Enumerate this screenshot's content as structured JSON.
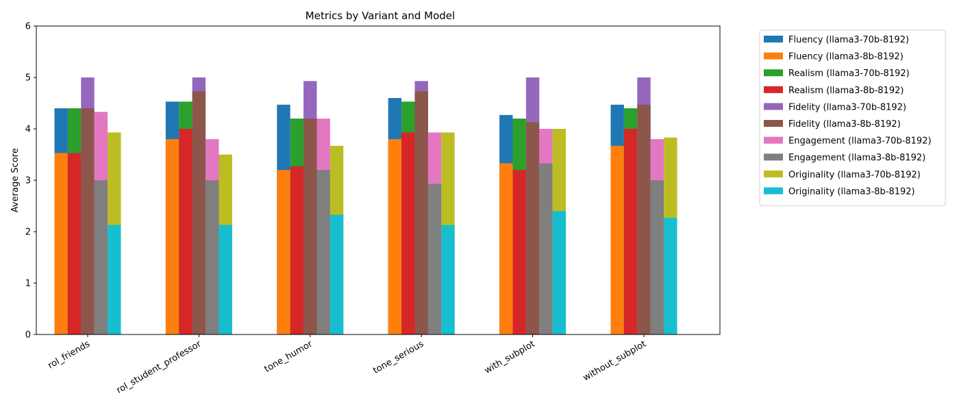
{
  "chart_data": {
    "type": "bar",
    "title": "Metrics by Variant and Model",
    "xlabel": "",
    "ylabel": "Average Score",
    "ylim": [
      0,
      6
    ],
    "yticks": [
      0,
      1,
      2,
      3,
      4,
      5,
      6
    ],
    "grid": false,
    "legend_position": "outside-right",
    "categories": [
      "rol_friends",
      "rol_student_professor",
      "tone_humor",
      "tone_serious",
      "with_subplot",
      "without_subplot"
    ],
    "series": [
      {
        "name": "Fluency (llama3-70b-8192)",
        "color": "#1f77b4",
        "group": 0,
        "values": [
          4.4,
          4.53,
          4.47,
          4.6,
          4.27,
          4.47
        ]
      },
      {
        "name": "Fluency (llama3-8b-8192)",
        "color": "#ff7f0e",
        "group": 0,
        "values": [
          3.53,
          3.8,
          3.2,
          3.8,
          3.33,
          3.67
        ]
      },
      {
        "name": "Realism (llama3-70b-8192)",
        "color": "#2ca02c",
        "group": 1,
        "values": [
          4.4,
          4.53,
          4.2,
          4.53,
          4.2,
          4.4
        ]
      },
      {
        "name": "Realism (llama3-8b-8192)",
        "color": "#d62728",
        "group": 1,
        "values": [
          3.53,
          4.0,
          3.27,
          3.93,
          3.2,
          4.0
        ]
      },
      {
        "name": "Fidelity (llama3-70b-8192)",
        "color": "#9467bd",
        "group": 2,
        "values": [
          5.0,
          5.0,
          4.93,
          4.93,
          5.0,
          5.0
        ]
      },
      {
        "name": "Fidelity (llama3-8b-8192)",
        "color": "#8c564b",
        "group": 2,
        "values": [
          4.4,
          4.73,
          4.2,
          4.73,
          4.13,
          4.47
        ]
      },
      {
        "name": "Engagement (llama3-70b-8192)",
        "color": "#e377c2",
        "group": 3,
        "values": [
          4.33,
          3.8,
          4.2,
          3.93,
          4.0,
          3.8
        ]
      },
      {
        "name": "Engagement (llama3-8b-8192)",
        "color": "#7f7f7f",
        "group": 3,
        "values": [
          3.0,
          3.0,
          3.2,
          2.93,
          3.33,
          3.0
        ]
      },
      {
        "name": "Originality (llama3-70b-8192)",
        "color": "#bcbd22",
        "group": 4,
        "values": [
          3.93,
          3.5,
          3.67,
          3.93,
          4.0,
          3.83
        ]
      },
      {
        "name": "Originality (llama3-8b-8192)",
        "color": "#17becf",
        "group": 4,
        "values": [
          2.13,
          2.13,
          2.33,
          2.13,
          2.4,
          2.27
        ]
      }
    ]
  }
}
